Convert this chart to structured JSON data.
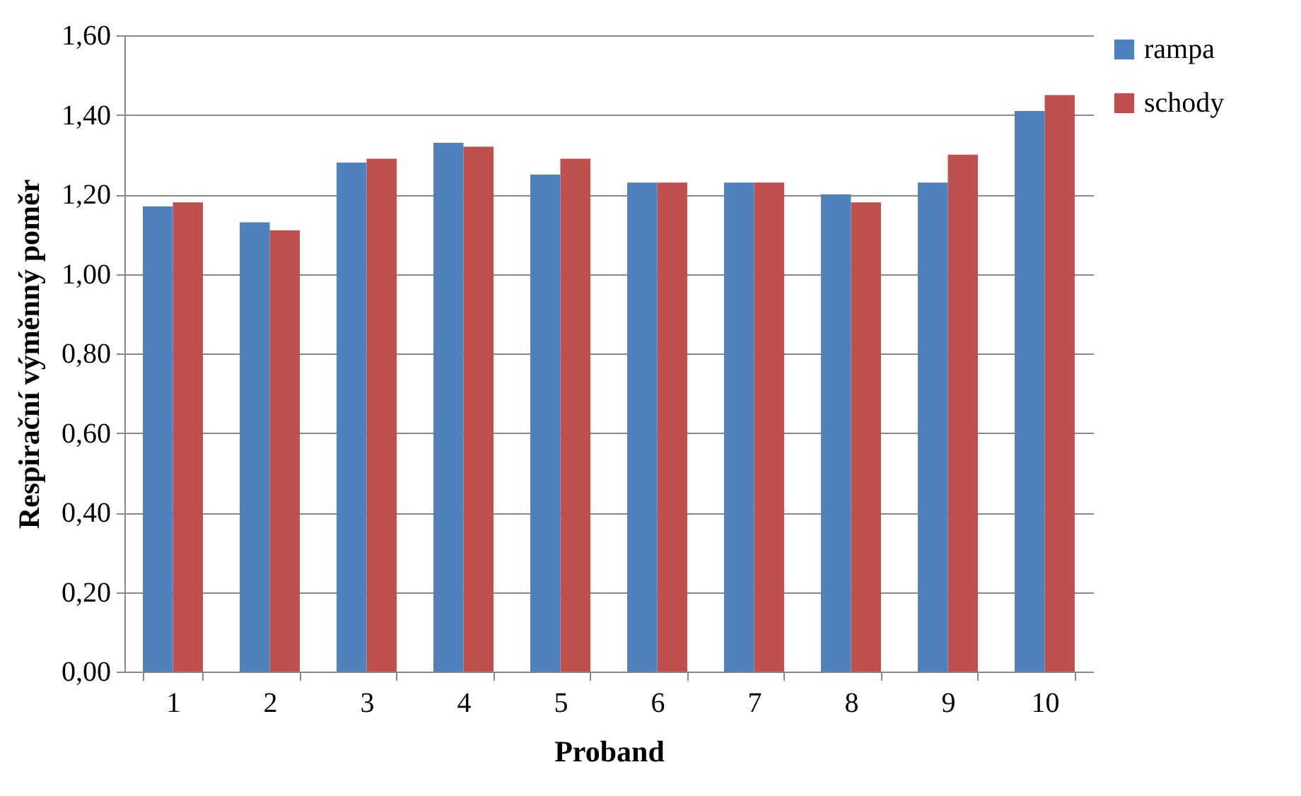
{
  "chart_data": {
    "type": "bar",
    "xlabel": "Proband",
    "ylabel": "Respirační výměnný poměr",
    "categories": [
      "1",
      "2",
      "3",
      "4",
      "5",
      "6",
      "7",
      "8",
      "9",
      "10"
    ],
    "series": [
      {
        "name": "rampa",
        "color": "#4f81bd",
        "values": [
          1.17,
          1.13,
          1.28,
          1.33,
          1.25,
          1.23,
          1.23,
          1.2,
          1.23,
          1.41
        ]
      },
      {
        "name": "schody",
        "color": "#c0504d",
        "values": [
          1.18,
          1.11,
          1.29,
          1.32,
          1.29,
          1.23,
          1.23,
          1.18,
          1.3,
          1.45
        ]
      }
    ],
    "ylim": [
      0,
      1.6
    ],
    "yticks": [
      {
        "value": 0,
        "label": "0,00"
      },
      {
        "value": 0.2,
        "label": "0,20"
      },
      {
        "value": 0.4,
        "label": "0,40"
      },
      {
        "value": 0.6,
        "label": "0,60"
      },
      {
        "value": 0.8,
        "label": "0,80"
      },
      {
        "value": 1.0,
        "label": "1,00"
      },
      {
        "value": 1.2,
        "label": "1,20"
      },
      {
        "value": 1.4,
        "label": "1,40"
      },
      {
        "value": 1.6,
        "label": "1,60"
      }
    ],
    "grid": "y",
    "legend": "right"
  }
}
